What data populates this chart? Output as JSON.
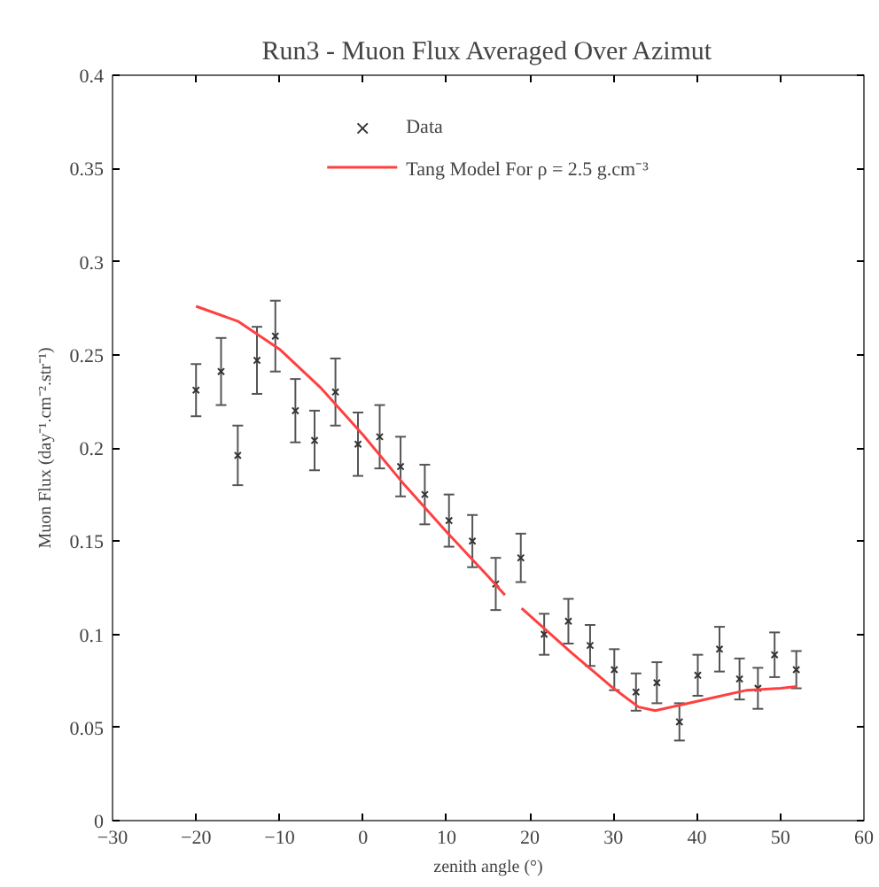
{
  "chart_data": {
    "type": "scatter",
    "title": "Run3 - Muon Flux Averaged Over Azimut",
    "xlabel": "zenith angle (°)",
    "ylabel": "Muon Flux (day⁻¹.cm⁻².str⁻¹)",
    "xlim": [
      -30,
      60
    ],
    "ylim": [
      0,
      0.4
    ],
    "xticks": [
      -30,
      -20,
      -10,
      0,
      10,
      20,
      30,
      40,
      50,
      60
    ],
    "yticks": [
      0,
      0.05,
      0.1,
      0.15,
      0.2,
      0.25,
      0.3,
      0.35,
      0.4
    ],
    "grid": false,
    "legend": "top",
    "series": [
      {
        "name": "Data",
        "marker": "cross",
        "color": "#333333",
        "x": [
          -20,
          -17,
          -15,
          -12.7,
          -10.5,
          -8.1,
          -5.8,
          -3.3,
          -0.6,
          2,
          4.5,
          7.4,
          10.3,
          13.1,
          15.9,
          18.9,
          21.7,
          24.6,
          27.2,
          30.1,
          32.7,
          35.2,
          37.9,
          40.1,
          42.7,
          45.1,
          47.3,
          49.3,
          51.9
        ],
        "values": [
          0.231,
          0.241,
          0.196,
          0.247,
          0.26,
          0.22,
          0.204,
          0.23,
          0.202,
          0.206,
          0.19,
          0.175,
          0.161,
          0.15,
          0.127,
          0.141,
          0.1,
          0.107,
          0.094,
          0.081,
          0.069,
          0.074,
          0.053,
          0.078,
          0.092,
          0.076,
          0.071,
          0.089,
          0.081
        ],
        "errors": [
          0.014,
          0.018,
          0.016,
          0.018,
          0.019,
          0.017,
          0.016,
          0.018,
          0.017,
          0.017,
          0.016,
          0.016,
          0.014,
          0.014,
          0.014,
          0.013,
          0.011,
          0.012,
          0.011,
          0.011,
          0.01,
          0.011,
          0.01,
          0.011,
          0.012,
          0.011,
          0.011,
          0.012,
          0.01
        ]
      },
      {
        "name": "Tang Model For ρ = 2.5 g.cm⁻³",
        "type": "line",
        "marker": "none",
        "line_style": "solid",
        "color": "#ff4040",
        "x": [
          -20,
          -15,
          -10,
          -5,
          0,
          5,
          10,
          15,
          17,
          18,
          19,
          25,
          30,
          33,
          35,
          38,
          42,
          46,
          50,
          52
        ],
        "values": [
          0.276,
          0.268,
          0.253,
          0.232,
          0.207,
          0.18,
          0.155,
          0.131,
          0.121,
          null,
          0.114,
          0.09,
          0.071,
          0.061,
          0.059,
          0.062,
          0.066,
          0.07,
          0.071,
          0.072
        ]
      }
    ]
  }
}
